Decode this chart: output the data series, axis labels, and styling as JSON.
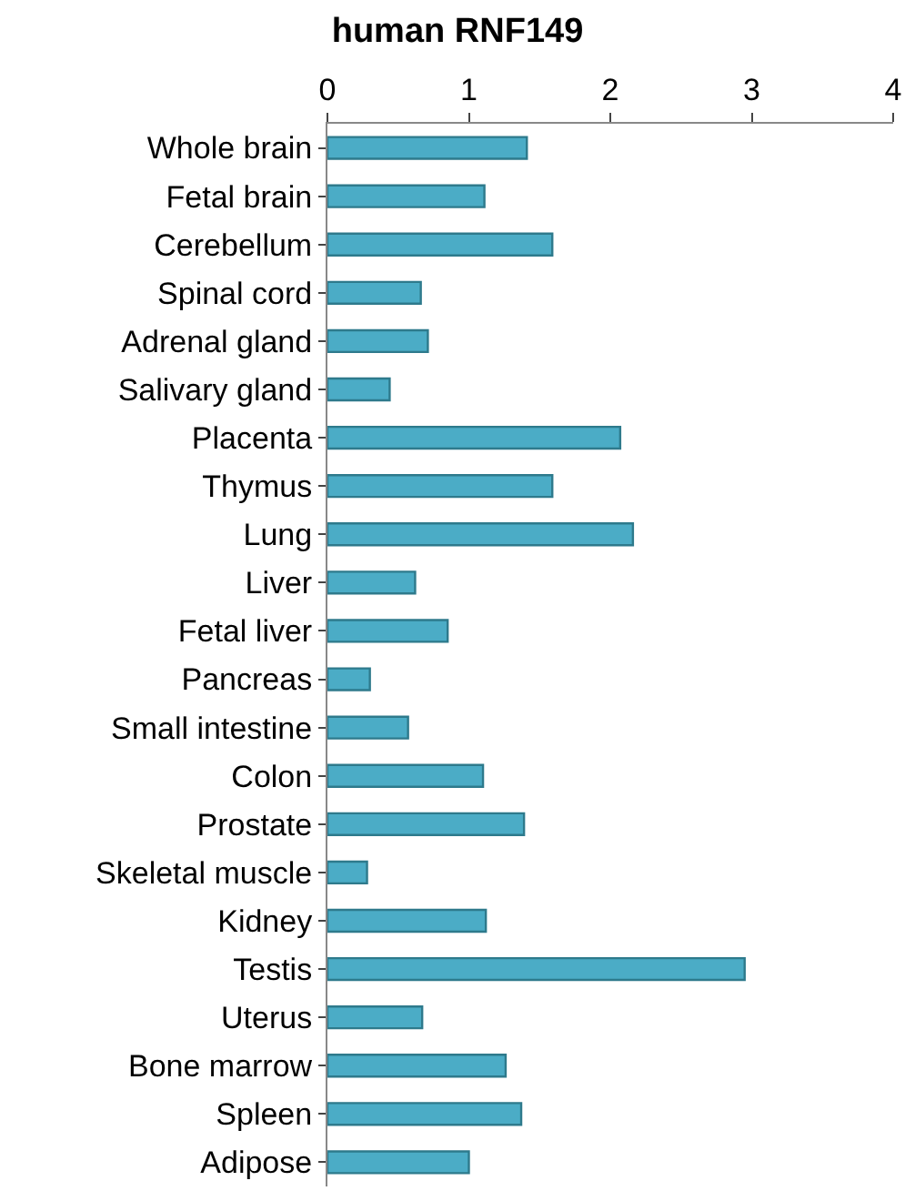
{
  "chart_data": {
    "type": "bar",
    "orientation": "horizontal",
    "title": "human RNF149",
    "categories": [
      "Whole brain",
      "Fetal brain",
      "Cerebellum",
      "Spinal cord",
      "Adrenal gland",
      "Salivary gland",
      "Placenta",
      "Thymus",
      "Lung",
      "Liver",
      "Fetal liver",
      "Pancreas",
      "Small intestine",
      "Colon",
      "Prostate",
      "Skeletal muscle",
      "Kidney",
      "Testis",
      "Uterus",
      "Bone marrow",
      "Spleen",
      "Adipose"
    ],
    "values": [
      1.41,
      1.11,
      1.59,
      0.66,
      0.71,
      0.44,
      2.07,
      1.59,
      2.16,
      0.62,
      0.85,
      0.3,
      0.57,
      1.1,
      1.39,
      0.28,
      1.12,
      2.95,
      0.67,
      1.26,
      1.37,
      1.0
    ],
    "color": "#4bacc6",
    "xlim": [
      0,
      4
    ],
    "xticks": [
      0,
      1,
      2,
      3,
      4
    ]
  }
}
